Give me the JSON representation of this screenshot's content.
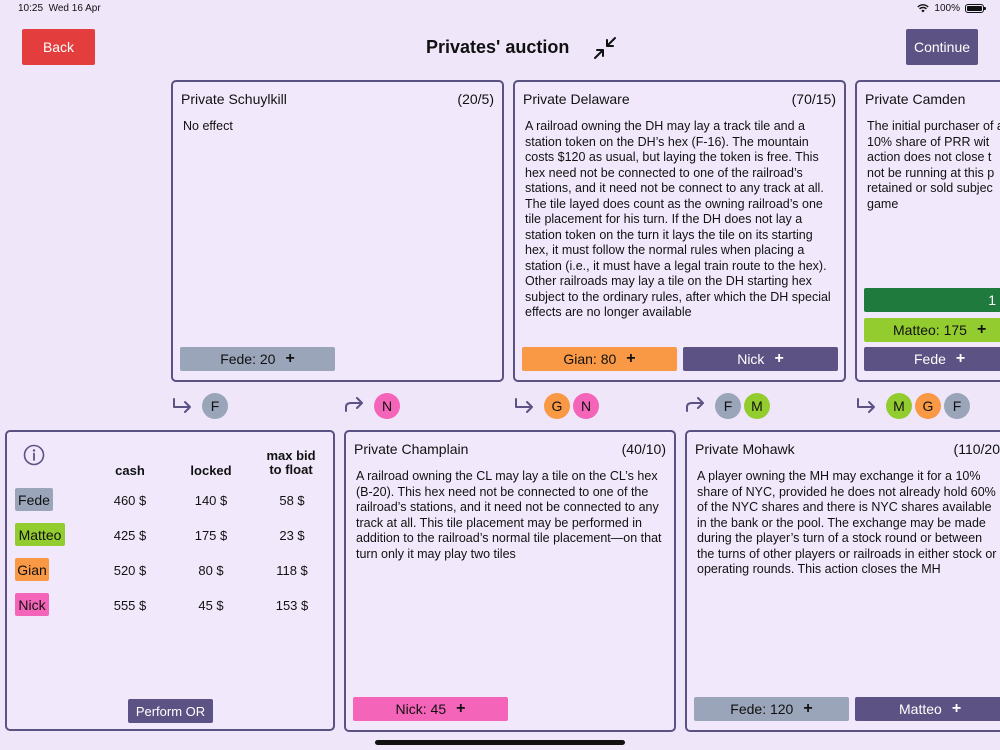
{
  "status": {
    "time": "10:25",
    "date": "Wed 16 Apr",
    "battery": "100%"
  },
  "header": {
    "back_label": "Back",
    "title": "Privates' auction",
    "continue_label": "Continue"
  },
  "colors": {
    "fede": "#9aa5ba",
    "matteo": "#93cc2e",
    "gian": "#f99945",
    "nick": "#f464b8",
    "accent": "#5c5283",
    "back": "#e43d3d",
    "camden_bar": "#1f7a3e"
  },
  "privates": {
    "schuylkill": {
      "name": "Private Schuylkill",
      "value": "(20/5)",
      "text": "No effect",
      "bids": [
        "Fede: 20"
      ],
      "order": [
        "F"
      ]
    },
    "delaware": {
      "name": "Private Delaware",
      "value": "(70/15)",
      "text": "A railroad owning the DH may lay a track tile and a station token on the DH’s hex (F-16). The mountain costs $120 as usual, but laying the token is free. This hex need not be connected to one of the railroad’s stations, and it need not be connect to any track at all. The tile layed does count as the owning railroad’s one tile placement for his turn. If the DH does not lay a station token on the turn it lays the tile on its starting hex, it must follow the normal rules when placing a station (i.e., it must have a legal train route to the hex). Other railroads may lay a tile on the DH starting hex subject to the ordinary rules, after which the DH special effects are no longer available",
      "bids": [
        "Gian: 80",
        "Nick"
      ],
      "order": [
        "G",
        "N"
      ]
    },
    "camden": {
      "name": "Private Camden",
      "text": "The initial purchaser of a 10% share of PRR wit action does not close t not be running at this p retained or sold subjec game",
      "bar_label": "1",
      "bids": [
        "Matteo: 175",
        "Fede"
      ],
      "order": [
        "M",
        "G",
        "F"
      ]
    },
    "champlain": {
      "name": "Private Champlain",
      "value": "(40/10)",
      "text": "A railroad owning the CL may lay a tile on the CL’s hex (B-20). This hex need not be connected to one of the railroad’s stations, and it need not be connected to any track at all. This tile placement may be performed in addition to the railroad’s normal tile placement—on that turn only it may play two tiles",
      "bids": [
        "Nick: 45"
      ],
      "order": [
        "N"
      ]
    },
    "mohawk": {
      "name": "Private Mohawk",
      "value": "(110/20",
      "text": "A player owning the MH may exchange it for a 10% share of NYC, provided he does not already hold 60% of the NYC shares and there is NYC shares available in the bank or the pool. The exchange may be made during the player’s turn of a stock round or between the turns of other players or railroads in either stock or operating rounds. This action closes the MH",
      "bids": [
        "Fede: 120",
        "Matteo"
      ],
      "order": [
        "F",
        "M"
      ]
    }
  },
  "players_table": {
    "headers": {
      "cash": "cash",
      "locked": "locked",
      "maxbid": "max bid\nto float"
    },
    "rows": [
      {
        "name": "Fede",
        "cash": "460 $",
        "locked": "140 $",
        "maxbid": "58 $"
      },
      {
        "name": "Matteo",
        "cash": "425 $",
        "locked": "175 $",
        "maxbid": "23 $"
      },
      {
        "name": "Gian",
        "cash": "520 $",
        "locked": "80 $",
        "maxbid": "118 $"
      },
      {
        "name": "Nick",
        "cash": "555 $",
        "locked": "45 $",
        "maxbid": "153 $"
      }
    ],
    "perform_label": "Perform OR"
  }
}
